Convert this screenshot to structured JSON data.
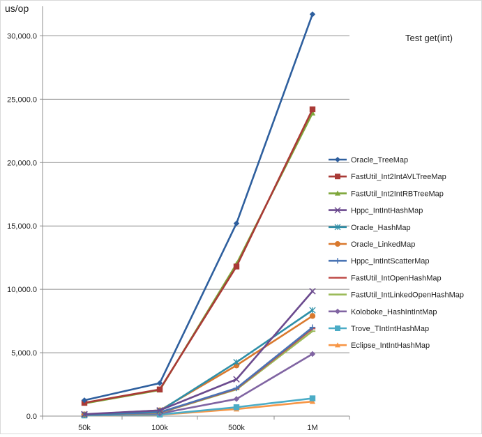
{
  "chart_data": {
    "type": "line",
    "title": "Test get(int)",
    "ylabel": "us/op",
    "xlabel": "",
    "categories": [
      "50k",
      "100k",
      "500k",
      "1M"
    ],
    "ylim": [
      0,
      32000
    ],
    "yticks": [
      0,
      5000,
      10000,
      15000,
      20000,
      25000,
      30000
    ],
    "ytick_labels": [
      "0.0",
      "5,000.0",
      "10,000.0",
      "15,000.0",
      "20,000.0",
      "25,000.0",
      "30,000.0"
    ],
    "grid": "horizontal",
    "legend_position": "right",
    "series": [
      {
        "name": "Oracle_TreeMap",
        "color": "#2E5F9E",
        "marker": "diamond",
        "values": [
          1250,
          2600,
          15200,
          31700
        ]
      },
      {
        "name": "FastUtil_Int2IntAVLTreeMap",
        "color": "#A93A36",
        "marker": "square",
        "values": [
          1050,
          2100,
          11800,
          24200
        ]
      },
      {
        "name": "FastUtil_Int2IntRBTreeMap",
        "color": "#7EA63A",
        "marker": "triangle",
        "values": [
          1000,
          2050,
          12000,
          23900
        ]
      },
      {
        "name": "Hppc_IntIntHashMap",
        "color": "#6B4A8E",
        "marker": "x",
        "values": [
          150,
          450,
          2900,
          9850
        ]
      },
      {
        "name": "Oracle_HashMap",
        "color": "#2E8FA8",
        "marker": "asterisk",
        "values": [
          120,
          400,
          4250,
          8350
        ]
      },
      {
        "name": "Oracle_LinkedMap",
        "color": "#D9792E",
        "marker": "circle",
        "values": [
          130,
          450,
          4000,
          7900
        ]
      },
      {
        "name": "Hppc_IntIntScatterMap",
        "color": "#4A74B4",
        "marker": "plus",
        "values": [
          100,
          300,
          2200,
          7000
        ]
      },
      {
        "name": "FastUtil_IntOpenHashMap",
        "color": "#C0504D",
        "marker": "dash",
        "values": [
          110,
          280,
          2150,
          6900
        ]
      },
      {
        "name": "FastUtil_IntLinkedOpenHashMap",
        "color": "#9BBB59",
        "marker": "dash",
        "values": [
          100,
          250,
          2100,
          6700
        ]
      },
      {
        "name": "Koloboke_HashIntIntMap",
        "color": "#8064A2",
        "marker": "diamond",
        "values": [
          80,
          200,
          1350,
          4900
        ]
      },
      {
        "name": "Trove_TIntIntHashMap",
        "color": "#4BACC6",
        "marker": "square",
        "values": [
          50,
          120,
          700,
          1400
        ]
      },
      {
        "name": "Eclipse_IntIntHashMap",
        "color": "#F79646",
        "marker": "triangle",
        "values": [
          40,
          100,
          550,
          1150
        ]
      }
    ]
  }
}
